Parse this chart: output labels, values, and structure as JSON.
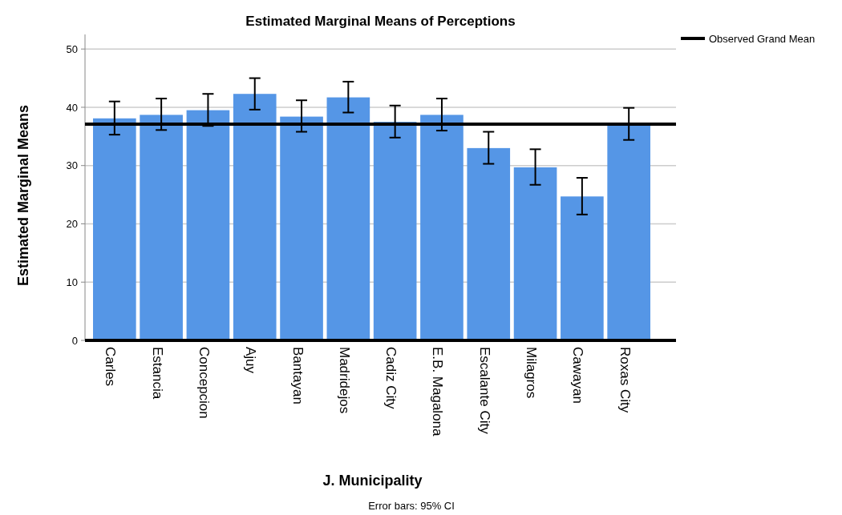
{
  "chart_data": {
    "type": "bar",
    "title": "Estimated Marginal Means of Perceptions",
    "xlabel": "J. Municipality",
    "ylabel": "Estimated Marginal Means",
    "categories": [
      "Carles",
      "Estancia",
      "Concepcion",
      "Ajuy",
      "Bantayan",
      "Madridejos",
      "Cadiz City",
      "E.B. Magalona",
      "Escalante City",
      "Milagros",
      "Cawayan",
      "Roxas City"
    ],
    "values": [
      38.1,
      38.7,
      39.5,
      42.3,
      38.4,
      41.7,
      37.5,
      38.7,
      33.0,
      29.7,
      24.7,
      37.0
    ],
    "errors": [
      [
        35.3,
        41.0
      ],
      [
        36.1,
        41.5
      ],
      [
        36.8,
        42.3
      ],
      [
        39.6,
        45.0
      ],
      [
        35.8,
        41.2
      ],
      [
        39.1,
        44.4
      ],
      [
        34.8,
        40.3
      ],
      [
        36.0,
        41.5
      ],
      [
        30.3,
        35.8
      ],
      [
        26.7,
        32.8
      ],
      [
        21.6,
        27.9
      ],
      [
        34.4,
        39.9
      ]
    ],
    "color": "#5596e6",
    "ylim": [
      0,
      52.5
    ],
    "yticks": [
      0,
      10,
      20,
      30,
      40,
      50
    ],
    "grid": "y",
    "ref_lines": [
      {
        "axis": "y",
        "value": 37.1,
        "label": "Observed Grand Mean",
        "color": "#000000"
      }
    ],
    "legend": "top right",
    "annotations": [
      "Error bars: 95% CI"
    ]
  }
}
